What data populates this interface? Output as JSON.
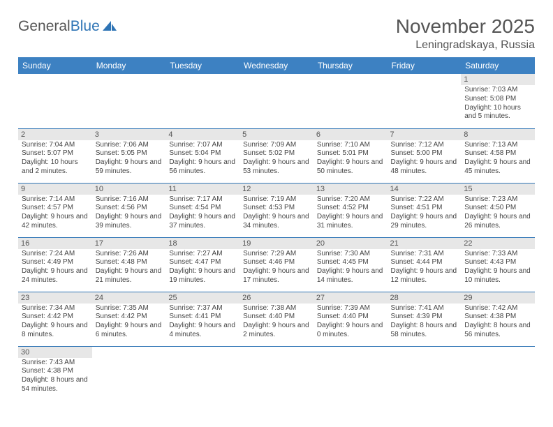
{
  "logo": {
    "part1": "General",
    "part2": "Blue"
  },
  "title": "November 2025",
  "location": "Leningradskaya, Russia",
  "dayHeaders": [
    "Sunday",
    "Monday",
    "Tuesday",
    "Wednesday",
    "Thursday",
    "Friday",
    "Saturday"
  ],
  "colors": {
    "headerBg": "#3d81c2",
    "dayNumBg": "#e7e7e7",
    "border": "#2e74b5",
    "text": "#444"
  },
  "weeks": [
    [
      null,
      null,
      null,
      null,
      null,
      null,
      {
        "n": "1",
        "sr": "Sunrise: 7:03 AM",
        "ss": "Sunset: 5:08 PM",
        "dl": "Daylight: 10 hours and 5 minutes."
      }
    ],
    [
      {
        "n": "2",
        "sr": "Sunrise: 7:04 AM",
        "ss": "Sunset: 5:07 PM",
        "dl": "Daylight: 10 hours and 2 minutes."
      },
      {
        "n": "3",
        "sr": "Sunrise: 7:06 AM",
        "ss": "Sunset: 5:05 PM",
        "dl": "Daylight: 9 hours and 59 minutes."
      },
      {
        "n": "4",
        "sr": "Sunrise: 7:07 AM",
        "ss": "Sunset: 5:04 PM",
        "dl": "Daylight: 9 hours and 56 minutes."
      },
      {
        "n": "5",
        "sr": "Sunrise: 7:09 AM",
        "ss": "Sunset: 5:02 PM",
        "dl": "Daylight: 9 hours and 53 minutes."
      },
      {
        "n": "6",
        "sr": "Sunrise: 7:10 AM",
        "ss": "Sunset: 5:01 PM",
        "dl": "Daylight: 9 hours and 50 minutes."
      },
      {
        "n": "7",
        "sr": "Sunrise: 7:12 AM",
        "ss": "Sunset: 5:00 PM",
        "dl": "Daylight: 9 hours and 48 minutes."
      },
      {
        "n": "8",
        "sr": "Sunrise: 7:13 AM",
        "ss": "Sunset: 4:58 PM",
        "dl": "Daylight: 9 hours and 45 minutes."
      }
    ],
    [
      {
        "n": "9",
        "sr": "Sunrise: 7:14 AM",
        "ss": "Sunset: 4:57 PM",
        "dl": "Daylight: 9 hours and 42 minutes."
      },
      {
        "n": "10",
        "sr": "Sunrise: 7:16 AM",
        "ss": "Sunset: 4:56 PM",
        "dl": "Daylight: 9 hours and 39 minutes."
      },
      {
        "n": "11",
        "sr": "Sunrise: 7:17 AM",
        "ss": "Sunset: 4:54 PM",
        "dl": "Daylight: 9 hours and 37 minutes."
      },
      {
        "n": "12",
        "sr": "Sunrise: 7:19 AM",
        "ss": "Sunset: 4:53 PM",
        "dl": "Daylight: 9 hours and 34 minutes."
      },
      {
        "n": "13",
        "sr": "Sunrise: 7:20 AM",
        "ss": "Sunset: 4:52 PM",
        "dl": "Daylight: 9 hours and 31 minutes."
      },
      {
        "n": "14",
        "sr": "Sunrise: 7:22 AM",
        "ss": "Sunset: 4:51 PM",
        "dl": "Daylight: 9 hours and 29 minutes."
      },
      {
        "n": "15",
        "sr": "Sunrise: 7:23 AM",
        "ss": "Sunset: 4:50 PM",
        "dl": "Daylight: 9 hours and 26 minutes."
      }
    ],
    [
      {
        "n": "16",
        "sr": "Sunrise: 7:24 AM",
        "ss": "Sunset: 4:49 PM",
        "dl": "Daylight: 9 hours and 24 minutes."
      },
      {
        "n": "17",
        "sr": "Sunrise: 7:26 AM",
        "ss": "Sunset: 4:48 PM",
        "dl": "Daylight: 9 hours and 21 minutes."
      },
      {
        "n": "18",
        "sr": "Sunrise: 7:27 AM",
        "ss": "Sunset: 4:47 PM",
        "dl": "Daylight: 9 hours and 19 minutes."
      },
      {
        "n": "19",
        "sr": "Sunrise: 7:29 AM",
        "ss": "Sunset: 4:46 PM",
        "dl": "Daylight: 9 hours and 17 minutes."
      },
      {
        "n": "20",
        "sr": "Sunrise: 7:30 AM",
        "ss": "Sunset: 4:45 PM",
        "dl": "Daylight: 9 hours and 14 minutes."
      },
      {
        "n": "21",
        "sr": "Sunrise: 7:31 AM",
        "ss": "Sunset: 4:44 PM",
        "dl": "Daylight: 9 hours and 12 minutes."
      },
      {
        "n": "22",
        "sr": "Sunrise: 7:33 AM",
        "ss": "Sunset: 4:43 PM",
        "dl": "Daylight: 9 hours and 10 minutes."
      }
    ],
    [
      {
        "n": "23",
        "sr": "Sunrise: 7:34 AM",
        "ss": "Sunset: 4:42 PM",
        "dl": "Daylight: 9 hours and 8 minutes."
      },
      {
        "n": "24",
        "sr": "Sunrise: 7:35 AM",
        "ss": "Sunset: 4:42 PM",
        "dl": "Daylight: 9 hours and 6 minutes."
      },
      {
        "n": "25",
        "sr": "Sunrise: 7:37 AM",
        "ss": "Sunset: 4:41 PM",
        "dl": "Daylight: 9 hours and 4 minutes."
      },
      {
        "n": "26",
        "sr": "Sunrise: 7:38 AM",
        "ss": "Sunset: 4:40 PM",
        "dl": "Daylight: 9 hours and 2 minutes."
      },
      {
        "n": "27",
        "sr": "Sunrise: 7:39 AM",
        "ss": "Sunset: 4:40 PM",
        "dl": "Daylight: 9 hours and 0 minutes."
      },
      {
        "n": "28",
        "sr": "Sunrise: 7:41 AM",
        "ss": "Sunset: 4:39 PM",
        "dl": "Daylight: 8 hours and 58 minutes."
      },
      {
        "n": "29",
        "sr": "Sunrise: 7:42 AM",
        "ss": "Sunset: 4:38 PM",
        "dl": "Daylight: 8 hours and 56 minutes."
      }
    ],
    [
      {
        "n": "30",
        "sr": "Sunrise: 7:43 AM",
        "ss": "Sunset: 4:38 PM",
        "dl": "Daylight: 8 hours and 54 minutes."
      },
      null,
      null,
      null,
      null,
      null,
      null
    ]
  ]
}
